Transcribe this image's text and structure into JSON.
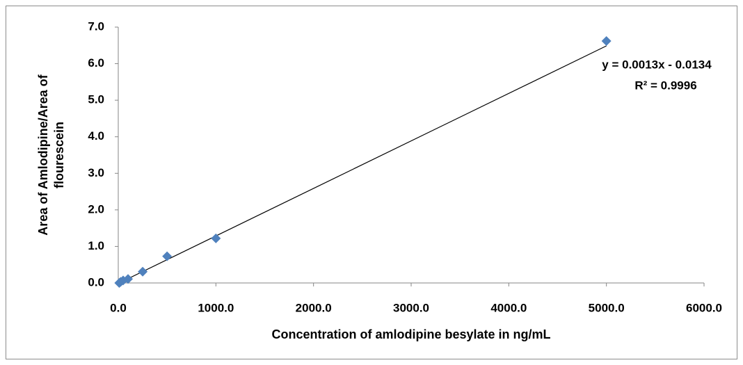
{
  "chart_data": {
    "type": "scatter",
    "x_label": "Concentration of amlodipine besylate in ng/mL",
    "y_label": [
      "Area of Amlodipine/Area of",
      "flourescein"
    ],
    "series": [
      {
        "name": "Amlodipine",
        "color": "#4f81bd",
        "x": [
          10,
          25,
          50,
          100,
          250,
          500,
          1000,
          5000
        ],
        "values": [
          0.0,
          0.03,
          0.07,
          0.11,
          0.31,
          0.73,
          1.22,
          6.62
        ]
      }
    ],
    "trendline": {
      "slope": 0.0013,
      "intercept": -0.0134,
      "color": "#000000",
      "equation": "y = 0.0013x - 0.0134",
      "r2": "R² = 0.9996"
    },
    "xlim": [
      0,
      6000
    ],
    "xticks": [
      {
        "value": 0,
        "label": "0.0"
      },
      {
        "value": 1000,
        "label": "1000.0"
      },
      {
        "value": 2000,
        "label": "2000.0"
      },
      {
        "value": 3000,
        "label": "3000.0"
      },
      {
        "value": 4000,
        "label": "4000.0"
      },
      {
        "value": 5000,
        "label": "5000.0"
      },
      {
        "value": 6000,
        "label": "6000.0"
      }
    ],
    "ylim": [
      0,
      7
    ],
    "yticks": [
      {
        "value": 0,
        "label": "0.0"
      },
      {
        "value": 1,
        "label": "1.0"
      },
      {
        "value": 2,
        "label": "2.0"
      },
      {
        "value": 3,
        "label": "3.0"
      },
      {
        "value": 4,
        "label": "4.0"
      },
      {
        "value": 5,
        "label": "5.0"
      },
      {
        "value": 6,
        "label": "6.0"
      },
      {
        "value": 7,
        "label": "7.0"
      }
    ],
    "grid": false
  }
}
